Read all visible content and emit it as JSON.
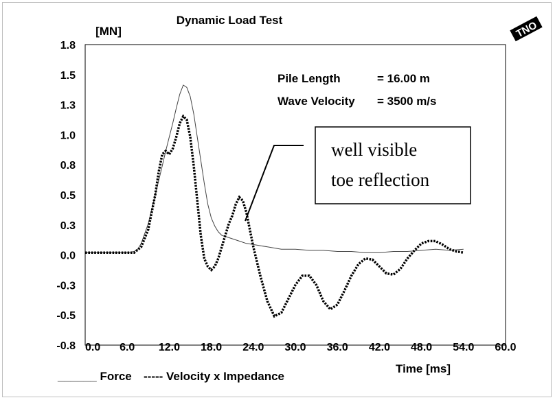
{
  "chart_data": {
    "type": "line",
    "title": "Dynamic Load Test",
    "ylabel": "[MN]",
    "xlabel": "Time [ms]",
    "xlim": [
      0,
      60
    ],
    "ylim": [
      -0.8,
      1.8
    ],
    "x_ticks": [
      "0.0",
      "6.0",
      "12.0",
      "18.0",
      "24.0",
      "30.0",
      "36.0",
      "42.0",
      "48.0",
      "54.0",
      "60.0"
    ],
    "y_ticks": [
      "1.8",
      "1.5",
      "1.3",
      "1.0",
      "0.8",
      "0.5",
      "0.3",
      "0.0",
      "-0.3",
      "-0.5",
      "-0.8"
    ],
    "info": [
      {
        "label": "Pile Length",
        "value": "= 16.00 m"
      },
      {
        "label": "Wave Velocity",
        "value": "=  3500 m/s"
      }
    ],
    "annotation": [
      "well visible",
      "toe reflection"
    ],
    "legend": {
      "force": "______ Force",
      "velocity": "----- Velocity x Impedance"
    },
    "logo_text": "TNO",
    "series": [
      {
        "key": "force",
        "style": "solid",
        "x": [
          0,
          6,
          7,
          7.5,
          8,
          9,
          10,
          11,
          11.5,
          12,
          12.5,
          13,
          13.5,
          14,
          14.5,
          15,
          15.5,
          16,
          16.5,
          17,
          17.5,
          18,
          18.5,
          19,
          19.5,
          20,
          21,
          22,
          23,
          24,
          25,
          26,
          27,
          28,
          30,
          32,
          34,
          36,
          38,
          40,
          42,
          44,
          46,
          48,
          50,
          52,
          54
        ],
        "y": [
          0.0,
          0.0,
          0.01,
          0.03,
          0.08,
          0.25,
          0.5,
          0.75,
          0.88,
          1.0,
          1.12,
          1.25,
          1.37,
          1.45,
          1.43,
          1.35,
          1.2,
          1.0,
          0.8,
          0.6,
          0.42,
          0.3,
          0.23,
          0.18,
          0.15,
          0.14,
          0.12,
          0.1,
          0.08,
          0.07,
          0.06,
          0.05,
          0.04,
          0.03,
          0.03,
          0.02,
          0.02,
          0.01,
          0.01,
          0.0,
          0.0,
          0.01,
          0.01,
          0.02,
          0.03,
          0.02,
          0.03
        ]
      },
      {
        "key": "velocity",
        "style": "dotted",
        "x": [
          0,
          6,
          7,
          8,
          9,
          10,
          10.5,
          11,
          11.5,
          12,
          12.5,
          13,
          13.5,
          14,
          14.5,
          15,
          15.5,
          16,
          16.5,
          17,
          17.5,
          18,
          18.5,
          19,
          19.5,
          20,
          20.5,
          21,
          21.5,
          22,
          22.5,
          23,
          23.5,
          24,
          25,
          26,
          27,
          28,
          29,
          30,
          31,
          32,
          33,
          34,
          35,
          36,
          37,
          38,
          39,
          40,
          41,
          42,
          43,
          44,
          45,
          46,
          47,
          48,
          49,
          50,
          51,
          52,
          53,
          54
        ],
        "y": [
          0.0,
          0.0,
          0.0,
          0.05,
          0.2,
          0.5,
          0.7,
          0.85,
          0.88,
          0.85,
          0.9,
          1.0,
          1.12,
          1.18,
          1.15,
          1.0,
          0.75,
          0.45,
          0.15,
          -0.05,
          -0.12,
          -0.15,
          -0.12,
          -0.05,
          0.05,
          0.15,
          0.25,
          0.32,
          0.42,
          0.48,
          0.45,
          0.35,
          0.2,
          0.05,
          -0.2,
          -0.42,
          -0.55,
          -0.52,
          -0.4,
          -0.28,
          -0.2,
          -0.2,
          -0.28,
          -0.42,
          -0.49,
          -0.45,
          -0.33,
          -0.2,
          -0.1,
          -0.05,
          -0.06,
          -0.12,
          -0.18,
          -0.19,
          -0.14,
          -0.05,
          0.02,
          0.08,
          0.1,
          0.1,
          0.07,
          0.03,
          0.01,
          0.0
        ]
      }
    ]
  }
}
